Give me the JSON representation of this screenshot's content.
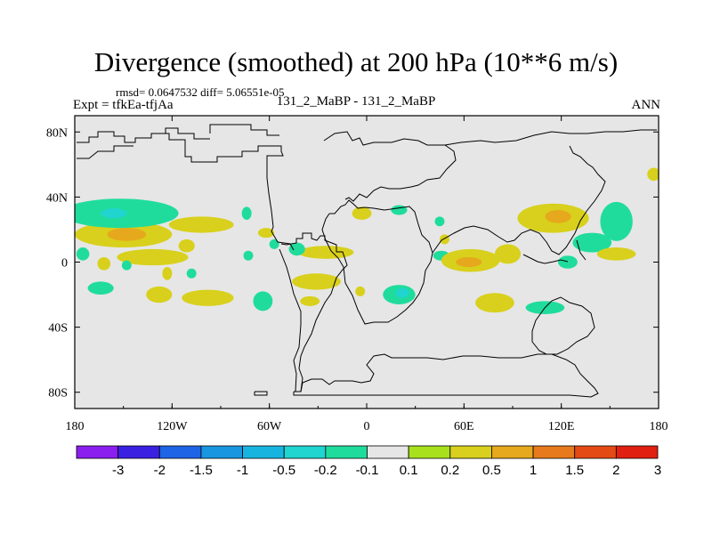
{
  "title": "Divergence (smoothed) at 200 hPa (10**6 m/s)",
  "stats": "rmsd= 0.0647532 diff= 5.06551e-05",
  "left_label": "Expt = tfkEa-tfjAa",
  "center_label": "131_2_MaBP - 131_2_MaBP",
  "right_label": "ANN",
  "chart_data": {
    "type": "heatmap",
    "background_color": "#e6e6e6",
    "x_axis": {
      "range": [
        -180,
        180
      ],
      "ticks": [
        -180,
        -120,
        -60,
        0,
        60,
        120,
        180
      ],
      "tick_labels": [
        "180",
        "120W",
        "60W",
        "0",
        "60E",
        "120E",
        "180"
      ]
    },
    "y_axis": {
      "range": [
        -90,
        90
      ],
      "ticks": [
        80,
        40,
        0,
        -40,
        -80
      ],
      "tick_labels": [
        "80N",
        "40N",
        "0",
        "40S",
        "80S"
      ]
    },
    "colorbar": {
      "labels": [
        "-3",
        "-2",
        "-1.5",
        "-1",
        "-0.5",
        "-0.2",
        "-0.1",
        "0.1",
        "0.2",
        "0.5",
        "1",
        "1.5",
        "2",
        "3"
      ],
      "colors": [
        "#8a1ff0",
        "#3a20e0",
        "#1e64e6",
        "#1896e0",
        "#18b4e0",
        "#20d4d0",
        "#20dc9c",
        "#e6e6e6",
        "#a8e01c",
        "#d8d01c",
        "#e6a81c",
        "#e67a1c",
        "#e44a14",
        "#e02010"
      ]
    },
    "regions": [
      {
        "lon": -150,
        "lat": 17,
        "w": 30,
        "h": 8,
        "level": "0.2"
      },
      {
        "lon": -148,
        "lat": 17,
        "w": 12,
        "h": 4,
        "level": "0.5"
      },
      {
        "lon": -152,
        "lat": 30,
        "w": 36,
        "h": 9,
        "level": "-0.1"
      },
      {
        "lon": -156,
        "lat": 30,
        "w": 8,
        "h": 3,
        "level": "-0.2"
      },
      {
        "lon": -102,
        "lat": 23,
        "w": 20,
        "h": 5,
        "level": "0.2"
      },
      {
        "lon": -111,
        "lat": 10,
        "w": 5,
        "h": 4,
        "level": "0.2"
      },
      {
        "lon": -132,
        "lat": 3,
        "w": 22,
        "h": 5,
        "level": "0.2"
      },
      {
        "lon": -175,
        "lat": 5,
        "w": 4,
        "h": 4,
        "level": "-0.1"
      },
      {
        "lon": -162,
        "lat": -1,
        "w": 4,
        "h": 4,
        "level": "0.2"
      },
      {
        "lon": -148,
        "lat": -2,
        "w": 3,
        "h": 3,
        "level": "-0.1"
      },
      {
        "lon": -164,
        "lat": -16,
        "w": 8,
        "h": 4,
        "level": "-0.1"
      },
      {
        "lon": -128,
        "lat": -20,
        "w": 8,
        "h": 5,
        "level": "0.2"
      },
      {
        "lon": -98,
        "lat": -22,
        "w": 16,
        "h": 5,
        "level": "0.2"
      },
      {
        "lon": -123,
        "lat": -7,
        "w": 3,
        "h": 4,
        "level": "0.2"
      },
      {
        "lon": -108,
        "lat": -7,
        "w": 3,
        "h": 3,
        "level": "-0.1"
      },
      {
        "lon": -74,
        "lat": 30,
        "w": 3,
        "h": 4,
        "level": "-0.1"
      },
      {
        "lon": -62,
        "lat": 18,
        "w": 5,
        "h": 3,
        "level": "0.2"
      },
      {
        "lon": -57,
        "lat": 11,
        "w": 3,
        "h": 3,
        "level": "-0.1"
      },
      {
        "lon": -73,
        "lat": 4,
        "w": 3,
        "h": 3,
        "level": "-0.1"
      },
      {
        "lon": -64,
        "lat": -24,
        "w": 6,
        "h": 6,
        "level": "-0.1"
      },
      {
        "lon": -25,
        "lat": 6,
        "w": 17,
        "h": 4,
        "level": "0.2"
      },
      {
        "lon": -43,
        "lat": 8,
        "w": 5,
        "h": 4,
        "level": "-0.1"
      },
      {
        "lon": -31,
        "lat": -12,
        "w": 15,
        "h": 5,
        "level": "0.2"
      },
      {
        "lon": -35,
        "lat": -24,
        "w": 6,
        "h": 3,
        "level": "0.2"
      },
      {
        "lon": -4,
        "lat": -18,
        "w": 3,
        "h": 3,
        "level": "0.2"
      },
      {
        "lon": 20,
        "lat": -20,
        "w": 10,
        "h": 6,
        "level": "-0.1"
      },
      {
        "lon": 22,
        "lat": -19,
        "w": 4,
        "h": 3,
        "level": "-0.2"
      },
      {
        "lon": -3,
        "lat": 30,
        "w": 6,
        "h": 4,
        "level": "0.2"
      },
      {
        "lon": 20,
        "lat": 32,
        "w": 5,
        "h": 3,
        "level": "-0.1"
      },
      {
        "lon": 45,
        "lat": 25,
        "w": 3,
        "h": 3,
        "level": "-0.1"
      },
      {
        "lon": 48,
        "lat": 14,
        "w": 3,
        "h": 3,
        "level": "0.2"
      },
      {
        "lon": 46,
        "lat": 4,
        "w": 5,
        "h": 3,
        "level": "-0.1"
      },
      {
        "lon": 64,
        "lat": 1,
        "w": 18,
        "h": 7,
        "level": "0.2"
      },
      {
        "lon": 63,
        "lat": 0,
        "w": 8,
        "h": 3,
        "level": "0.5"
      },
      {
        "lon": 87,
        "lat": 5,
        "w": 8,
        "h": 6,
        "level": "0.2"
      },
      {
        "lon": 79,
        "lat": -25,
        "w": 12,
        "h": 6,
        "level": "0.2"
      },
      {
        "lon": 110,
        "lat": -28,
        "w": 12,
        "h": 4,
        "level": "-0.1"
      },
      {
        "lon": 115,
        "lat": 27,
        "w": 22,
        "h": 9,
        "level": "0.2"
      },
      {
        "lon": 118,
        "lat": 28,
        "w": 8,
        "h": 4,
        "level": "0.5"
      },
      {
        "lon": 154,
        "lat": 25,
        "w": 10,
        "h": 12,
        "level": "-0.1"
      },
      {
        "lon": 139,
        "lat": 12,
        "w": 12,
        "h": 6,
        "level": "-0.1"
      },
      {
        "lon": 124,
        "lat": 0,
        "w": 6,
        "h": 4,
        "level": "-0.1"
      },
      {
        "lon": 154,
        "lat": 5,
        "w": 12,
        "h": 4,
        "level": "0.2"
      },
      {
        "lon": 177,
        "lat": 54,
        "w": 4,
        "h": 4,
        "level": "0.2"
      }
    ]
  }
}
